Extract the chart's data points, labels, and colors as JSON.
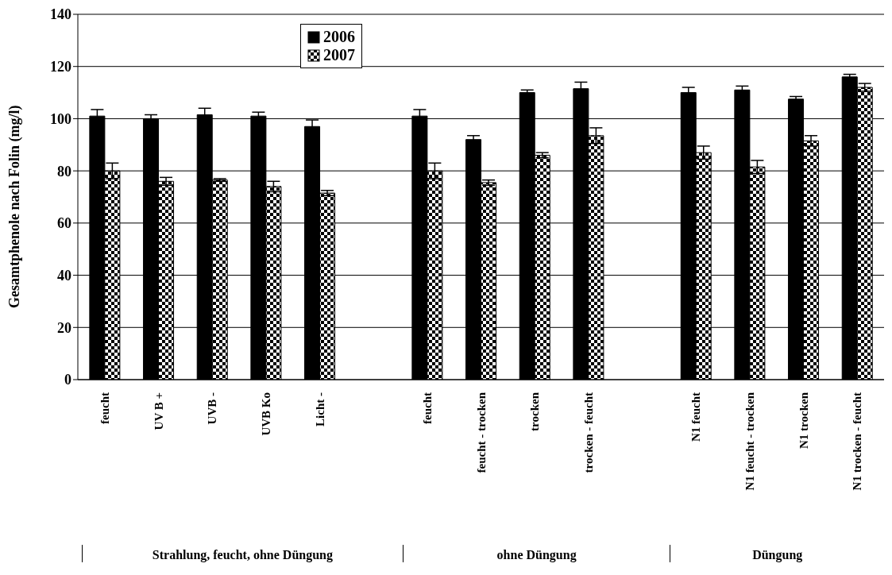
{
  "chart_data": {
    "type": "bar",
    "ylabel": "Gesamtphenole nach Folin (mg/l)",
    "categories": [
      "feucht",
      "UV B +",
      "UVB -",
      "UVB Ko",
      "Licht -",
      null,
      "feucht",
      "feucht - trocken",
      "trocken",
      "trocken - feucht",
      null,
      "N1 feucht",
      "N1 feucht - trocken",
      "N1 trocken",
      "N1 trocken - feucht"
    ],
    "series": [
      {
        "name": "2006",
        "color": "#000000",
        "values": [
          101,
          100,
          101.5,
          101,
          97,
          null,
          101,
          92,
          110,
          111.5,
          null,
          110,
          111,
          107.5,
          116
        ],
        "errors": [
          2.5,
          1.5,
          2.5,
          1.5,
          2.5,
          null,
          2.5,
          1.5,
          1,
          2.5,
          null,
          2,
          1.5,
          1,
          1
        ]
      },
      {
        "name": "2007",
        "color": "#000000",
        "values": [
          80,
          76,
          76.5,
          74,
          71.5,
          null,
          80,
          75.5,
          86,
          93.5,
          null,
          87,
          81.5,
          91.5,
          112
        ],
        "errors": [
          3,
          1.5,
          0.5,
          2,
          1,
          null,
          3,
          1,
          1,
          3,
          null,
          2.5,
          2.5,
          2,
          1.5
        ]
      }
    ],
    "ylim": [
      0,
      140
    ],
    "yticks": [
      0,
      20,
      40,
      60,
      80,
      100,
      120,
      140
    ],
    "grid": "y",
    "legend": "top",
    "annotations": [
      "Strahlung, feucht, ohne Düngung",
      "ohne Düngung",
      "Düngung"
    ]
  }
}
